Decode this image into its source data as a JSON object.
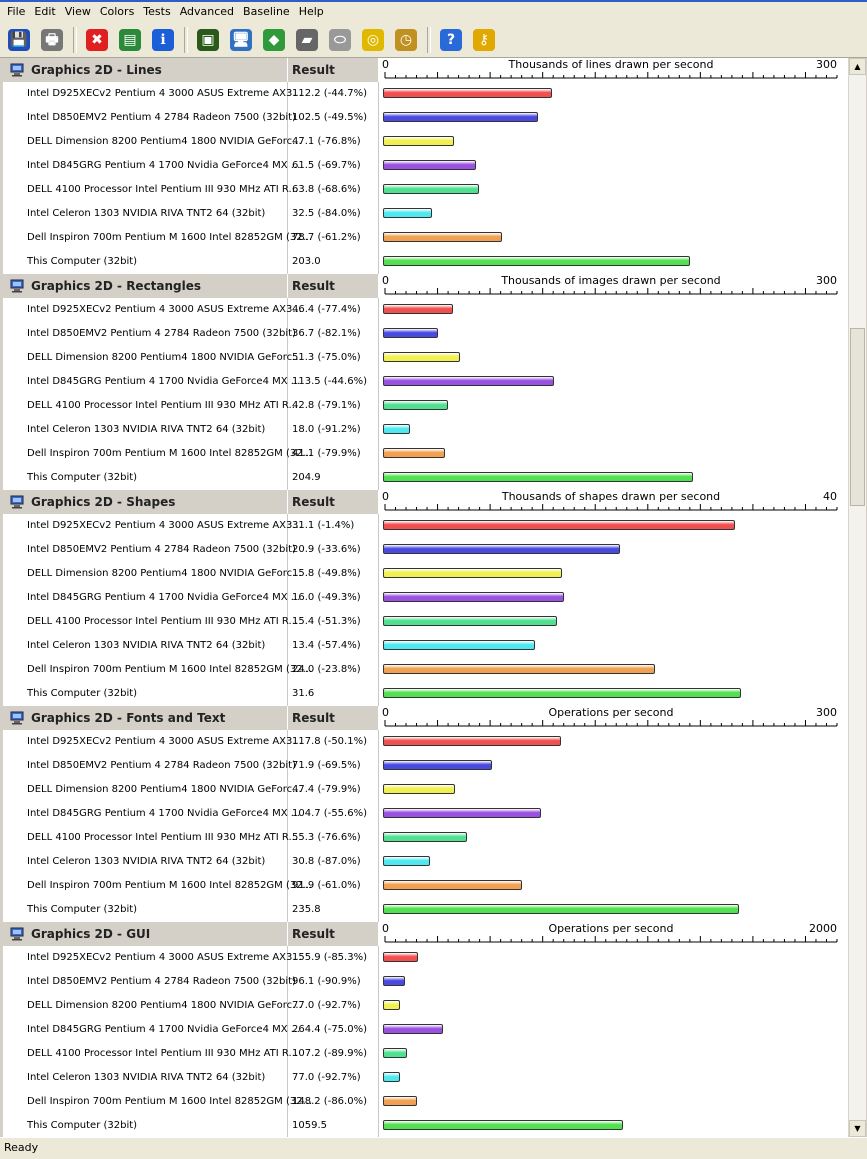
{
  "menu": [
    "File",
    "Edit",
    "View",
    "Colors",
    "Tests",
    "Advanced",
    "Baseline",
    "Help"
  ],
  "toolbar": [
    {
      "name": "save-icon",
      "color": "#1e4fb8"
    },
    {
      "name": "print-icon",
      "color": "#777777"
    },
    {
      "name": "delete-icon",
      "color": "#e02020"
    },
    {
      "name": "report-icon",
      "color": "#2a8a3a"
    },
    {
      "name": "info-icon",
      "color": "#1a5fd8"
    },
    {
      "name": "cpu-icon",
      "color": "#2a5a1a"
    },
    {
      "name": "monitor-icon",
      "color": "#3070c0"
    },
    {
      "name": "system-icon",
      "color": "#2e9a3a"
    },
    {
      "name": "memory-icon",
      "color": "#666666"
    },
    {
      "name": "disk-icon",
      "color": "#999999"
    },
    {
      "name": "cd-icon",
      "color": "#e0b800"
    },
    {
      "name": "clock-icon",
      "color": "#c09020"
    },
    {
      "name": "help-icon",
      "color": "#2a6ad8"
    },
    {
      "name": "key-icon",
      "color": "#e0a800"
    }
  ],
  "result_header": "Result",
  "colors": [
    "#f05050",
    "#4a4ae0",
    "#f0f050",
    "#9a50e0",
    "#50e090",
    "#50e8f0",
    "#f0a050",
    "#50e050"
  ],
  "sections": [
    {
      "title": "Graphics 2D - Lines",
      "axis_label": "Thousands of lines drawn per second",
      "axis_min": "0",
      "axis_max": "300",
      "max": 300,
      "rows": [
        {
          "name": "Intel D925XECv2 Pentium 4 3000 ASUS Extreme AX3...",
          "result": "112.2 (-44.7%)",
          "value": 112.2
        },
        {
          "name": "Intel D850EMV2 Pentium 4 2784 Radeon 7500 (32bit)",
          "result": "102.5 (-49.5%)",
          "value": 102.5
        },
        {
          "name": "DELL Dimension 8200 Pentium4 1800 NVIDIA GeForc...",
          "result": "47.1 (-76.8%)",
          "value": 47.1
        },
        {
          "name": "Intel D845GRG Pentium 4 1700 Nvidia GeForce4 MX ...",
          "result": "61.5 (-69.7%)",
          "value": 61.5
        },
        {
          "name": "DELL 4100 Processor Intel Pentium III 930 MHz ATI R...",
          "result": "63.8 (-68.6%)",
          "value": 63.8
        },
        {
          "name": "Intel Celeron 1303 NVIDIA RIVA TNT2 64 (32bit)",
          "result": "32.5 (-84.0%)",
          "value": 32.5
        },
        {
          "name": "Dell Inspiron 700m Pentium M 1600 Intel 82852GM (32...",
          "result": "78.7 (-61.2%)",
          "value": 78.7
        },
        {
          "name": "This Computer (32bit)",
          "result": "203.0",
          "value": 203.0
        }
      ]
    },
    {
      "title": "Graphics 2D - Rectangles",
      "axis_label": "Thousands of images drawn per second",
      "axis_min": "0",
      "axis_max": "300",
      "max": 300,
      "rows": [
        {
          "name": "Intel D925XECv2 Pentium 4 3000 ASUS Extreme AX3...",
          "result": "46.4 (-77.4%)",
          "value": 46.4
        },
        {
          "name": "Intel D850EMV2 Pentium 4 2784 Radeon 7500 (32bit)",
          "result": "36.7 (-82.1%)",
          "value": 36.7
        },
        {
          "name": "DELL Dimension 8200 Pentium4 1800 NVIDIA GeForc...",
          "result": "51.3 (-75.0%)",
          "value": 51.3
        },
        {
          "name": "Intel D845GRG Pentium 4 1700 Nvidia GeForce4 MX ...",
          "result": "113.5 (-44.6%)",
          "value": 113.5
        },
        {
          "name": "DELL 4100 Processor Intel Pentium III 930 MHz ATI R...",
          "result": "42.8 (-79.1%)",
          "value": 42.8
        },
        {
          "name": "Intel Celeron 1303 NVIDIA RIVA TNT2 64 (32bit)",
          "result": "18.0 (-91.2%)",
          "value": 18.0
        },
        {
          "name": "Dell Inspiron 700m Pentium M 1600 Intel 82852GM (32...",
          "result": "41.1 (-79.9%)",
          "value": 41.1
        },
        {
          "name": "This Computer (32bit)",
          "result": "204.9",
          "value": 204.9
        }
      ]
    },
    {
      "title": "Graphics 2D - Shapes",
      "axis_label": "Thousands of shapes drawn per second",
      "axis_min": "0",
      "axis_max": "40",
      "max": 40,
      "rows": [
        {
          "name": "Intel D925XECv2 Pentium 4 3000 ASUS Extreme AX3...",
          "result": "31.1 (-1.4%)",
          "value": 31.1
        },
        {
          "name": "Intel D850EMV2 Pentium 4 2784 Radeon 7500 (32bit)",
          "result": "20.9 (-33.6%)",
          "value": 20.9
        },
        {
          "name": "DELL Dimension 8200 Pentium4 1800 NVIDIA GeForc...",
          "result": "15.8 (-49.8%)",
          "value": 15.8
        },
        {
          "name": "Intel D845GRG Pentium 4 1700 Nvidia GeForce4 MX ...",
          "result": "16.0 (-49.3%)",
          "value": 16.0
        },
        {
          "name": "DELL 4100 Processor Intel Pentium III 930 MHz ATI R...",
          "result": "15.4 (-51.3%)",
          "value": 15.4
        },
        {
          "name": "Intel Celeron 1303 NVIDIA RIVA TNT2 64 (32bit)",
          "result": "13.4 (-57.4%)",
          "value": 13.4
        },
        {
          "name": "Dell Inspiron 700m Pentium M 1600 Intel 82852GM (32...",
          "result": "24.0 (-23.8%)",
          "value": 24.0
        },
        {
          "name": "This Computer (32bit)",
          "result": "31.6",
          "value": 31.6
        }
      ]
    },
    {
      "title": "Graphics 2D - Fonts and Text",
      "axis_label": "Operations per second",
      "axis_min": "0",
      "axis_max": "300",
      "max": 300,
      "rows": [
        {
          "name": "Intel D925XECv2 Pentium 4 3000 ASUS Extreme AX3...",
          "result": "117.8 (-50.1%)",
          "value": 117.8
        },
        {
          "name": "Intel D850EMV2 Pentium 4 2784 Radeon 7500 (32bit)",
          "result": "71.9 (-69.5%)",
          "value": 71.9
        },
        {
          "name": "DELL Dimension 8200 Pentium4 1800 NVIDIA GeForc...",
          "result": "47.4 (-79.9%)",
          "value": 47.4
        },
        {
          "name": "Intel D845GRG Pentium 4 1700 Nvidia GeForce4 MX ...",
          "result": "104.7 (-55.6%)",
          "value": 104.7
        },
        {
          "name": "DELL 4100 Processor Intel Pentium III 930 MHz ATI R...",
          "result": "55.3 (-76.6%)",
          "value": 55.3
        },
        {
          "name": "Intel Celeron 1303 NVIDIA RIVA TNT2 64 (32bit)",
          "result": "30.8 (-87.0%)",
          "value": 30.8
        },
        {
          "name": "Dell Inspiron 700m Pentium M 1600 Intel 82852GM (32...",
          "result": "91.9 (-61.0%)",
          "value": 91.9
        },
        {
          "name": "This Computer (32bit)",
          "result": "235.8",
          "value": 235.8
        }
      ]
    },
    {
      "title": "Graphics 2D - GUI",
      "axis_label": "Operations per second",
      "axis_min": "0",
      "axis_max": "2000",
      "max": 2000,
      "rows": [
        {
          "name": "Intel D925XECv2 Pentium 4 3000 ASUS Extreme AX3...",
          "result": "155.9 (-85.3%)",
          "value": 155.9
        },
        {
          "name": "Intel D850EMV2 Pentium 4 2784 Radeon 7500 (32bit)",
          "result": "96.1 (-90.9%)",
          "value": 96.1
        },
        {
          "name": "DELL Dimension 8200 Pentium4 1800 NVIDIA GeForc...",
          "result": "77.0 (-92.7%)",
          "value": 77.0
        },
        {
          "name": "Intel D845GRG Pentium 4 1700 Nvidia GeForce4 MX ...",
          "result": "264.4 (-75.0%)",
          "value": 264.4
        },
        {
          "name": "DELL 4100 Processor Intel Pentium III 930 MHz ATI R...",
          "result": "107.2 (-89.9%)",
          "value": 107.2
        },
        {
          "name": "Intel Celeron 1303 NVIDIA RIVA TNT2 64 (32bit)",
          "result": "77.0 (-92.7%)",
          "value": 77.0
        },
        {
          "name": "Dell Inspiron 700m Pentium M 1600 Intel 82852GM (32...",
          "result": "148.2 (-86.0%)",
          "value": 148.2
        },
        {
          "name": "This Computer (32bit)",
          "result": "1059.5",
          "value": 1059.5
        }
      ]
    }
  ],
  "status": "Ready"
}
